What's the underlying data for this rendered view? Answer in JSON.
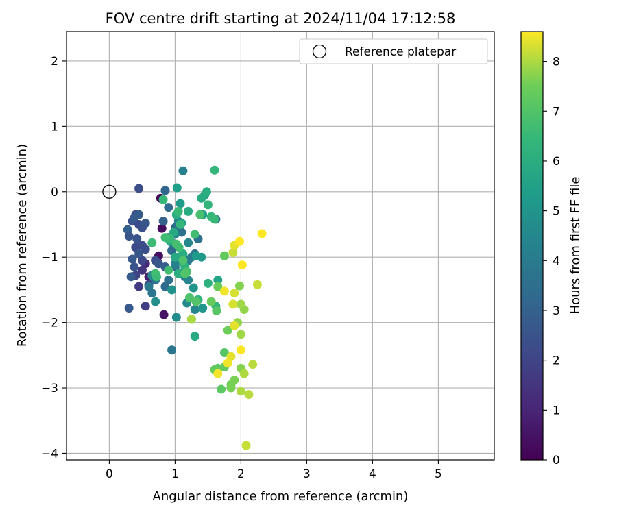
{
  "chart_data": {
    "type": "scatter",
    "title": "FOV centre drift starting at 2024/11/04 17:12:58",
    "xlabel": "Angular distance from reference (arcmin)",
    "ylabel": "Rotation from reference (arcmin)",
    "xlim": [
      -0.65,
      5.85
    ],
    "ylim": [
      -4.1,
      2.45
    ],
    "xticks": [
      "0",
      "1",
      "2",
      "3",
      "4",
      "5"
    ],
    "yticks": [
      "−4",
      "−3",
      "−2",
      "−1",
      "0",
      "1",
      "2"
    ],
    "grid": true,
    "legend": {
      "placement": "top-right",
      "entries": [
        "Reference platepar"
      ]
    },
    "reference_point": {
      "x": 0,
      "y": 0
    },
    "colorbar": {
      "label": "Hours from first FF file",
      "range": [
        0,
        8.6
      ],
      "ticks": [
        "0",
        "1",
        "2",
        "3",
        "4",
        "5",
        "6",
        "7",
        "8"
      ],
      "colormap": "viridis"
    },
    "points": [
      {
        "x": 0.78,
        "y": -0.1,
        "c": 0.2
      },
      {
        "x": 0.8,
        "y": -0.56,
        "c": 0.3
      },
      {
        "x": 0.75,
        "y": -0.98,
        "c": 0.4
      },
      {
        "x": 0.83,
        "y": -1.88,
        "c": 0.5
      },
      {
        "x": 0.6,
        "y": -1.3,
        "c": 0.8
      },
      {
        "x": 0.55,
        "y": -1.1,
        "c": 1.2
      },
      {
        "x": 0.5,
        "y": -1.2,
        "c": 1.5
      },
      {
        "x": 0.55,
        "y": -1.75,
        "c": 1.8
      },
      {
        "x": 0.45,
        "y": -1.45,
        "c": 1.7
      },
      {
        "x": 0.4,
        "y": -1.28,
        "c": 2.0
      },
      {
        "x": 0.6,
        "y": -1.42,
        "c": 1.9
      },
      {
        "x": 0.5,
        "y": -1.05,
        "c": 2.1
      },
      {
        "x": 0.45,
        "y": 0.05,
        "c": 2.3
      },
      {
        "x": 0.4,
        "y": -0.35,
        "c": 2.4
      },
      {
        "x": 0.35,
        "y": -0.45,
        "c": 2.5
      },
      {
        "x": 0.45,
        "y": -0.5,
        "c": 2.2
      },
      {
        "x": 0.5,
        "y": -0.55,
        "c": 2.4
      },
      {
        "x": 0.55,
        "y": -0.48,
        "c": 2.6
      },
      {
        "x": 0.38,
        "y": -0.4,
        "c": 2.7
      },
      {
        "x": 0.45,
        "y": -0.35,
        "c": 2.8
      },
      {
        "x": 0.28,
        "y": -0.58,
        "c": 2.9
      },
      {
        "x": 0.3,
        "y": -0.68,
        "c": 2.6
      },
      {
        "x": 0.42,
        "y": -0.72,
        "c": 2.5
      },
      {
        "x": 0.5,
        "y": -0.82,
        "c": 2.3
      },
      {
        "x": 0.55,
        "y": -0.88,
        "c": 2.4
      },
      {
        "x": 0.4,
        "y": -0.85,
        "c": 2.2
      },
      {
        "x": 0.45,
        "y": -0.95,
        "c": 2.6
      },
      {
        "x": 0.35,
        "y": -1.03,
        "c": 2.7
      },
      {
        "x": 0.38,
        "y": -1.15,
        "c": 2.5
      },
      {
        "x": 0.33,
        "y": -1.3,
        "c": 2.8
      },
      {
        "x": 0.3,
        "y": -1.78,
        "c": 2.7
      },
      {
        "x": 0.7,
        "y": -1.05,
        "c": 2.3
      },
      {
        "x": 0.75,
        "y": -1.1,
        "c": 2.6
      },
      {
        "x": 0.85,
        "y": -1.15,
        "c": 2.9
      },
      {
        "x": 0.82,
        "y": -0.45,
        "c": 3.0
      },
      {
        "x": 0.9,
        "y": -0.7,
        "c": 3.1
      },
      {
        "x": 0.85,
        "y": 0.02,
        "c": 3.2
      },
      {
        "x": 0.9,
        "y": -0.24,
        "c": 3.3
      },
      {
        "x": 1.0,
        "y": -0.55,
        "c": 3.4
      },
      {
        "x": 1.1,
        "y": -0.62,
        "c": 3.5
      },
      {
        "x": 0.95,
        "y": -0.9,
        "c": 3.3
      },
      {
        "x": 1.0,
        "y": -1.15,
        "c": 3.5
      },
      {
        "x": 0.9,
        "y": -1.35,
        "c": 3.6
      },
      {
        "x": 0.85,
        "y": -1.45,
        "c": 3.4
      },
      {
        "x": 0.7,
        "y": -1.35,
        "c": 3.7
      },
      {
        "x": 0.65,
        "y": -1.55,
        "c": 3.8
      },
      {
        "x": 0.6,
        "y": -1.45,
        "c": 3.9
      },
      {
        "x": 0.95,
        "y": -2.42,
        "c": 3.8
      },
      {
        "x": 1.62,
        "y": -0.42,
        "c": 3.5
      },
      {
        "x": 1.35,
        "y": -0.72,
        "c": 3.6
      },
      {
        "x": 1.3,
        "y": -0.95,
        "c": 3.7
      },
      {
        "x": 1.25,
        "y": -1.0,
        "c": 3.9
      },
      {
        "x": 1.2,
        "y": -1.05,
        "c": 4.0
      },
      {
        "x": 1.15,
        "y": -1.3,
        "c": 4.1
      },
      {
        "x": 1.12,
        "y": 0.32,
        "c": 4.2
      },
      {
        "x": 1.05,
        "y": -0.45,
        "c": 4.3
      },
      {
        "x": 1.0,
        "y": -0.65,
        "c": 4.4
      },
      {
        "x": 0.95,
        "y": -0.78,
        "c": 4.2
      },
      {
        "x": 1.2,
        "y": -0.78,
        "c": 4.5
      },
      {
        "x": 1.05,
        "y": -1.0,
        "c": 4.6
      },
      {
        "x": 1.0,
        "y": -1.1,
        "c": 4.3
      },
      {
        "x": 1.2,
        "y": -1.35,
        "c": 4.4
      },
      {
        "x": 1.18,
        "y": -1.7,
        "c": 4.6
      },
      {
        "x": 1.3,
        "y": -1.8,
        "c": 4.5
      },
      {
        "x": 1.02,
        "y": -1.92,
        "c": 4.7
      },
      {
        "x": 0.7,
        "y": -1.68,
        "c": 4.8
      },
      {
        "x": 0.65,
        "y": -1.28,
        "c": 4.6
      },
      {
        "x": 0.95,
        "y": -1.5,
        "c": 4.9
      },
      {
        "x": 1.42,
        "y": -1.78,
        "c": 5.0
      },
      {
        "x": 1.25,
        "y": -1.95,
        "c": 5.1
      },
      {
        "x": 1.28,
        "y": -1.47,
        "c": 5.0
      },
      {
        "x": 1.4,
        "y": -1.0,
        "c": 5.2
      },
      {
        "x": 1.32,
        "y": -0.98,
        "c": 5.3
      },
      {
        "x": 1.12,
        "y": -1.08,
        "c": 5.1
      },
      {
        "x": 1.08,
        "y": -1.25,
        "c": 5.2
      },
      {
        "x": 1.03,
        "y": 0.06,
        "c": 5.4
      },
      {
        "x": 1.08,
        "y": -0.18,
        "c": 5.3
      },
      {
        "x": 1.1,
        "y": -0.48,
        "c": 5.5
      },
      {
        "x": 1.42,
        "y": -0.35,
        "c": 5.4
      },
      {
        "x": 1.45,
        "y": -0.05,
        "c": 5.5
      },
      {
        "x": 1.65,
        "y": -1.35,
        "c": 5.6
      },
      {
        "x": 1.3,
        "y": -2.21,
        "c": 5.8
      },
      {
        "x": 1.4,
        "y": -0.1,
        "c": 5.9
      },
      {
        "x": 1.48,
        "y": 0.0,
        "c": 6.0
      },
      {
        "x": 1.2,
        "y": -0.3,
        "c": 5.9
      },
      {
        "x": 1.02,
        "y": -0.35,
        "c": 6.0
      },
      {
        "x": 0.98,
        "y": -0.62,
        "c": 5.8
      },
      {
        "x": 0.92,
        "y": -0.75,
        "c": 5.9
      },
      {
        "x": 1.12,
        "y": -0.95,
        "c": 6.0
      },
      {
        "x": 1.0,
        "y": -1.0,
        "c": 5.8
      },
      {
        "x": 1.15,
        "y": -1.15,
        "c": 6.1
      },
      {
        "x": 1.05,
        "y": -1.25,
        "c": 6.0
      },
      {
        "x": 1.5,
        "y": -1.4,
        "c": 6.1
      },
      {
        "x": 1.35,
        "y": -1.65,
        "c": 6.2
      },
      {
        "x": 1.62,
        "y": -1.75,
        "c": 6.3
      },
      {
        "x": 1.6,
        "y": 0.33,
        "c": 6.4
      },
      {
        "x": 1.5,
        "y": -0.2,
        "c": 6.3
      },
      {
        "x": 1.55,
        "y": -0.38,
        "c": 6.4
      },
      {
        "x": 1.6,
        "y": -0.42,
        "c": 6.5
      },
      {
        "x": 1.05,
        "y": -0.3,
        "c": 6.5
      },
      {
        "x": 1.08,
        "y": -0.5,
        "c": 6.4
      },
      {
        "x": 0.92,
        "y": -0.72,
        "c": 6.5
      },
      {
        "x": 0.85,
        "y": -0.7,
        "c": 6.6
      },
      {
        "x": 0.82,
        "y": -0.12,
        "c": 6.5
      },
      {
        "x": 0.65,
        "y": -0.78,
        "c": 6.6
      },
      {
        "x": 0.7,
        "y": -1.25,
        "c": 6.7
      },
      {
        "x": 0.72,
        "y": -1.3,
        "c": 6.6
      },
      {
        "x": 0.9,
        "y": -1.2,
        "c": 6.7
      },
      {
        "x": 1.3,
        "y": -0.65,
        "c": 6.7
      },
      {
        "x": 1.38,
        "y": -0.35,
        "c": 6.8
      },
      {
        "x": 1.02,
        "y": -0.8,
        "c": 6.8
      },
      {
        "x": 1.06,
        "y": -0.85,
        "c": 6.7
      },
      {
        "x": 1.12,
        "y": -1.05,
        "c": 6.9
      },
      {
        "x": 1.18,
        "y": -1.22,
        "c": 6.8
      },
      {
        "x": 1.22,
        "y": -1.62,
        "c": 6.9
      },
      {
        "x": 1.15,
        "y": -1.25,
        "c": 7.0
      },
      {
        "x": 1.32,
        "y": -1.68,
        "c": 7.0
      },
      {
        "x": 1.63,
        "y": -1.82,
        "c": 7.1
      },
      {
        "x": 1.75,
        "y": -2.46,
        "c": 7.1
      },
      {
        "x": 1.65,
        "y": -2.7,
        "c": 7.2
      },
      {
        "x": 1.7,
        "y": -3.02,
        "c": 7.2
      },
      {
        "x": 1.75,
        "y": -2.68,
        "c": 7.3
      },
      {
        "x": 1.6,
        "y": -2.72,
        "c": 7.3
      },
      {
        "x": 1.75,
        "y": -0.98,
        "c": 7.3
      },
      {
        "x": 1.65,
        "y": -1.45,
        "c": 7.4
      },
      {
        "x": 1.55,
        "y": -1.68,
        "c": 7.4
      },
      {
        "x": 1.8,
        "y": -2.12,
        "c": 7.5
      },
      {
        "x": 1.85,
        "y": -2.95,
        "c": 7.5
      },
      {
        "x": 1.9,
        "y": -2.88,
        "c": 7.6
      },
      {
        "x": 1.85,
        "y": -3.0,
        "c": 7.6
      },
      {
        "x": 2.0,
        "y": -2.7,
        "c": 7.7
      },
      {
        "x": 1.98,
        "y": -1.44,
        "c": 7.7
      },
      {
        "x": 2.05,
        "y": -1.8,
        "c": 7.8
      },
      {
        "x": 1.95,
        "y": -2.0,
        "c": 7.8
      },
      {
        "x": 2.0,
        "y": -1.72,
        "c": 7.9
      },
      {
        "x": 2.0,
        "y": -2.18,
        "c": 7.9
      },
      {
        "x": 2.05,
        "y": -2.78,
        "c": 8.0
      },
      {
        "x": 2.0,
        "y": -3.05,
        "c": 8.0
      },
      {
        "x": 2.12,
        "y": -3.1,
        "c": 8.1
      },
      {
        "x": 2.18,
        "y": -2.64,
        "c": 8.1
      },
      {
        "x": 2.25,
        "y": -1.42,
        "c": 8.2
      },
      {
        "x": 2.08,
        "y": -3.88,
        "c": 8.2
      },
      {
        "x": 1.9,
        "y": -1.55,
        "c": 8.3
      },
      {
        "x": 1.88,
        "y": -1.72,
        "c": 8.3
      },
      {
        "x": 1.9,
        "y": -2.05,
        "c": 8.4
      },
      {
        "x": 1.85,
        "y": -2.52,
        "c": 8.4
      },
      {
        "x": 1.8,
        "y": -2.62,
        "c": 8.5
      },
      {
        "x": 1.65,
        "y": -2.78,
        "c": 8.5
      },
      {
        "x": 2.0,
        "y": -2.42,
        "c": 8.6
      },
      {
        "x": 1.88,
        "y": -0.93,
        "c": 8.2
      },
      {
        "x": 1.9,
        "y": -0.82,
        "c": 8.4
      },
      {
        "x": 1.98,
        "y": -0.76,
        "c": 8.6
      },
      {
        "x": 1.75,
        "y": -1.52,
        "c": 8.5
      },
      {
        "x": 2.02,
        "y": -1.12,
        "c": 8.6
      },
      {
        "x": 2.32,
        "y": -0.64,
        "c": 8.6
      },
      {
        "x": 1.25,
        "y": -1.95,
        "c": 8.0
      }
    ]
  }
}
